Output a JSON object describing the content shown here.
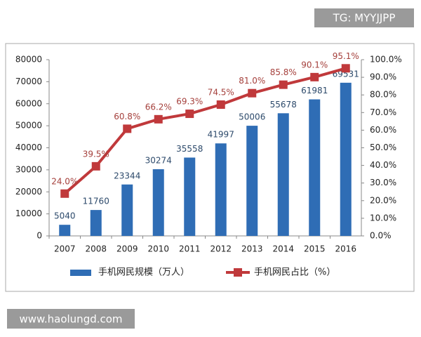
{
  "chart_data": {
    "type": "combo",
    "categories": [
      "2007",
      "2008",
      "2009",
      "2010",
      "2011",
      "2012",
      "2013",
      "2014",
      "2015",
      "2016"
    ],
    "series": [
      {
        "name": "手机网民规模（万人）",
        "type": "bar",
        "color": "#2f6db5",
        "values": [
          5040,
          11760,
          23344,
          30274,
          35558,
          41997,
          50006,
          55678,
          61981,
          69531
        ]
      },
      {
        "name": "手机网民占比（%）",
        "type": "line",
        "axis": "y2",
        "color": "#c0393b",
        "values": [
          24.0,
          39.5,
          60.8,
          66.2,
          69.3,
          74.5,
          81.0,
          85.8,
          90.1,
          95.1
        ],
        "value_labels": [
          "24.0%",
          "39.5%",
          "60.8%",
          "66.2%",
          "69.3%",
          "74.5%",
          "81.0%",
          "85.8%",
          "90.1%",
          "95.1%"
        ]
      }
    ],
    "ylim": [
      0,
      80000
    ],
    "yticks": [
      0,
      10000,
      20000,
      30000,
      40000,
      50000,
      60000,
      70000,
      80000
    ],
    "y2lim": [
      0,
      100
    ],
    "y2ticks": [
      {
        "value": 0,
        "label": "0.0%"
      },
      {
        "value": 10,
        "label": "10.0%"
      },
      {
        "value": 20,
        "label": "20.0%"
      },
      {
        "value": 30,
        "label": "30.0%"
      },
      {
        "value": 40,
        "label": "40.0%"
      },
      {
        "value": 50,
        "label": "50.0%"
      },
      {
        "value": 60,
        "label": "60.0%"
      },
      {
        "value": 70,
        "label": "70.0%"
      },
      {
        "value": 80,
        "label": "80.0%"
      },
      {
        "value": 90,
        "label": "90.0%"
      },
      {
        "value": 100,
        "label": "100.0%"
      }
    ],
    "grid": false,
    "legend": "bottom"
  },
  "overlay_texts": [
    "TG: MYYJJPP",
    "www.haolungd.com"
  ]
}
